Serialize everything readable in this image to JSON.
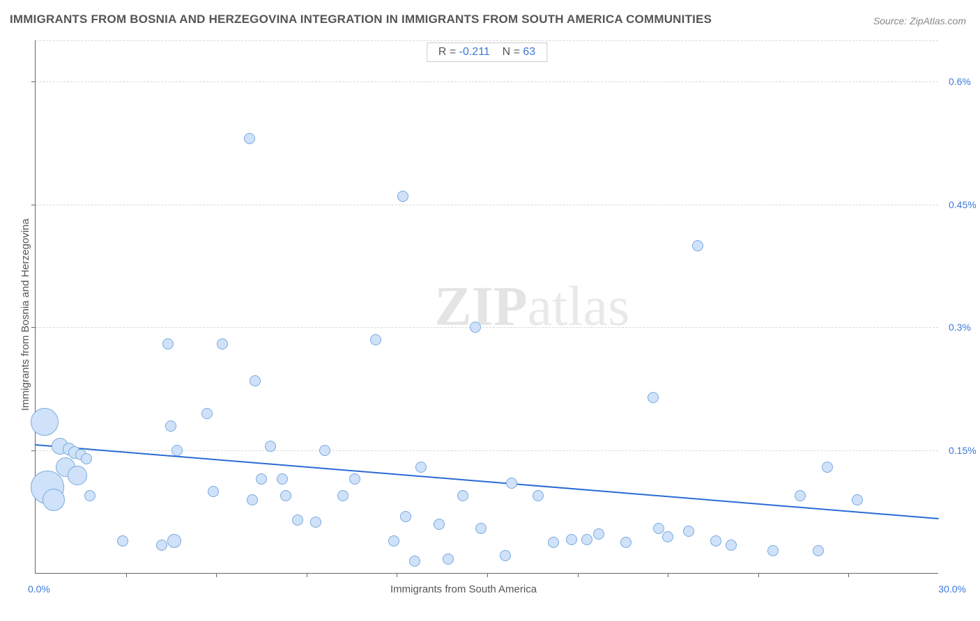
{
  "title": "IMMIGRANTS FROM BOSNIA AND HERZEGOVINA INTEGRATION IN IMMIGRANTS FROM SOUTH AMERICA COMMUNITIES",
  "source_label": "Source: ZipAtlas.com",
  "watermark": {
    "bold": "ZIP",
    "rest": "atlas"
  },
  "stats": {
    "r_label": "R =",
    "r_value": "-0.211",
    "n_label": "N =",
    "n_value": "63"
  },
  "chart": {
    "type": "scatter",
    "x_axis": {
      "title": "Immigrants from South America",
      "min": 0,
      "max": 30,
      "start_label": "0.0%",
      "end_label": "30.0%",
      "tick_positions": [
        3,
        6,
        9,
        12,
        15,
        18,
        21,
        24,
        27
      ]
    },
    "y_axis": {
      "title": "Immigrants from Bosnia and Herzegovina",
      "min": 0,
      "max": 0.65,
      "grid_lines": [
        0.15,
        0.3,
        0.45,
        0.6,
        0.65
      ],
      "labels": [
        {
          "v": 0.15,
          "t": "0.15%"
        },
        {
          "v": 0.3,
          "t": "0.3%"
        },
        {
          "v": 0.45,
          "t": "0.45%"
        },
        {
          "v": 0.6,
          "t": "0.6%"
        }
      ],
      "tick_positions": [
        0.15,
        0.3,
        0.45,
        0.6
      ]
    },
    "bubble_fill": "#cfe2f9",
    "bubble_stroke": "#7aa9de",
    "background_color": "#ffffff",
    "grid_color": "#d8d8d8",
    "trend": {
      "y_at_x0": 0.158,
      "y_at_xmax": 0.068,
      "color": "#2a6bd4",
      "width": 2.5
    },
    "points": [
      {
        "x": 0.3,
        "y": 0.185,
        "r": 20
      },
      {
        "x": 0.4,
        "y": 0.105,
        "r": 24
      },
      {
        "x": 0.6,
        "y": 0.09,
        "r": 16
      },
      {
        "x": 0.8,
        "y": 0.155,
        "r": 12
      },
      {
        "x": 1.0,
        "y": 0.13,
        "r": 14
      },
      {
        "x": 1.1,
        "y": 0.152,
        "r": 9
      },
      {
        "x": 1.3,
        "y": 0.148,
        "r": 9
      },
      {
        "x": 1.4,
        "y": 0.12,
        "r": 14
      },
      {
        "x": 1.5,
        "y": 0.145,
        "r": 8
      },
      {
        "x": 1.7,
        "y": 0.14,
        "r": 8
      },
      {
        "x": 1.8,
        "y": 0.095,
        "r": 8
      },
      {
        "x": 2.9,
        "y": 0.04,
        "r": 8
      },
      {
        "x": 4.2,
        "y": 0.035,
        "r": 8
      },
      {
        "x": 4.4,
        "y": 0.28,
        "r": 8
      },
      {
        "x": 4.5,
        "y": 0.18,
        "r": 8
      },
      {
        "x": 4.6,
        "y": 0.04,
        "r": 10
      },
      {
        "x": 4.7,
        "y": 0.15,
        "r": 8
      },
      {
        "x": 5.7,
        "y": 0.195,
        "r": 8
      },
      {
        "x": 5.9,
        "y": 0.1,
        "r": 8
      },
      {
        "x": 6.2,
        "y": 0.28,
        "r": 8
      },
      {
        "x": 7.1,
        "y": 0.53,
        "r": 8
      },
      {
        "x": 7.2,
        "y": 0.09,
        "r": 8
      },
      {
        "x": 7.3,
        "y": 0.235,
        "r": 8
      },
      {
        "x": 7.5,
        "y": 0.115,
        "r": 8
      },
      {
        "x": 7.8,
        "y": 0.155,
        "r": 8
      },
      {
        "x": 8.2,
        "y": 0.115,
        "r": 8
      },
      {
        "x": 8.3,
        "y": 0.095,
        "r": 8
      },
      {
        "x": 8.7,
        "y": 0.065,
        "r": 8
      },
      {
        "x": 9.3,
        "y": 0.063,
        "r": 8
      },
      {
        "x": 9.6,
        "y": 0.15,
        "r": 8
      },
      {
        "x": 10.2,
        "y": 0.095,
        "r": 8
      },
      {
        "x": 10.6,
        "y": 0.115,
        "r": 8
      },
      {
        "x": 11.3,
        "y": 0.285,
        "r": 8
      },
      {
        "x": 11.9,
        "y": 0.04,
        "r": 8
      },
      {
        "x": 12.2,
        "y": 0.46,
        "r": 8
      },
      {
        "x": 12.3,
        "y": 0.07,
        "r": 8
      },
      {
        "x": 12.6,
        "y": 0.015,
        "r": 8
      },
      {
        "x": 12.8,
        "y": 0.13,
        "r": 8
      },
      {
        "x": 13.4,
        "y": 0.06,
        "r": 8
      },
      {
        "x": 13.7,
        "y": 0.018,
        "r": 8
      },
      {
        "x": 14.2,
        "y": 0.095,
        "r": 8
      },
      {
        "x": 14.6,
        "y": 0.3,
        "r": 8
      },
      {
        "x": 14.8,
        "y": 0.055,
        "r": 8
      },
      {
        "x": 15.6,
        "y": 0.022,
        "r": 8
      },
      {
        "x": 15.8,
        "y": 0.11,
        "r": 8
      },
      {
        "x": 16.7,
        "y": 0.095,
        "r": 8
      },
      {
        "x": 17.2,
        "y": 0.038,
        "r": 8
      },
      {
        "x": 17.8,
        "y": 0.042,
        "r": 8
      },
      {
        "x": 18.3,
        "y": 0.042,
        "r": 8
      },
      {
        "x": 18.7,
        "y": 0.048,
        "r": 8
      },
      {
        "x": 19.6,
        "y": 0.038,
        "r": 8
      },
      {
        "x": 20.5,
        "y": 0.215,
        "r": 8
      },
      {
        "x": 20.7,
        "y": 0.055,
        "r": 8
      },
      {
        "x": 21.0,
        "y": 0.045,
        "r": 8
      },
      {
        "x": 21.7,
        "y": 0.052,
        "r": 8
      },
      {
        "x": 22.0,
        "y": 0.4,
        "r": 8
      },
      {
        "x": 22.6,
        "y": 0.04,
        "r": 8
      },
      {
        "x": 23.1,
        "y": 0.035,
        "r": 8
      },
      {
        "x": 24.5,
        "y": 0.028,
        "r": 8
      },
      {
        "x": 25.4,
        "y": 0.095,
        "r": 8
      },
      {
        "x": 26.0,
        "y": 0.028,
        "r": 8
      },
      {
        "x": 26.3,
        "y": 0.13,
        "r": 8
      },
      {
        "x": 27.3,
        "y": 0.09,
        "r": 8
      }
    ]
  }
}
